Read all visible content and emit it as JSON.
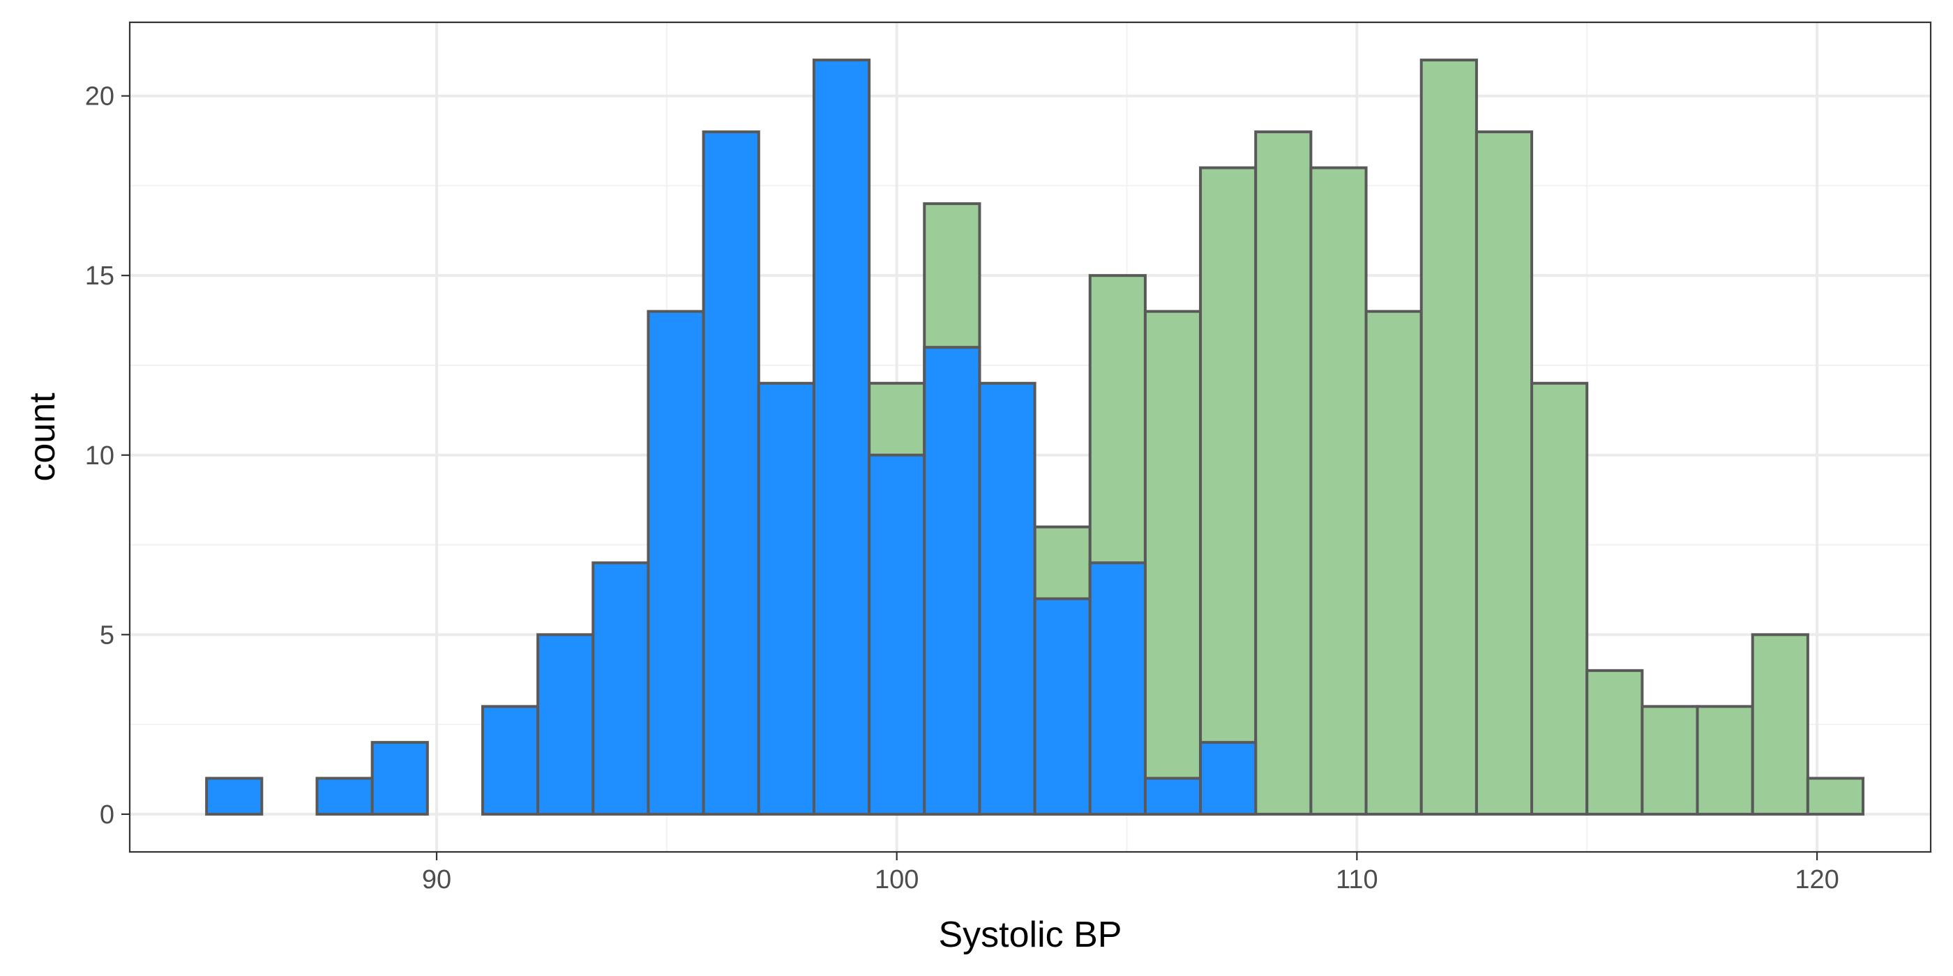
{
  "chart_data": {
    "type": "bar",
    "xlabel": "Systolic BP",
    "ylabel": "count",
    "xlim": [
      83.33,
      122.47
    ],
    "ylim": [
      -1.05,
      22.05
    ],
    "x_ticks": [
      90,
      100,
      110,
      120
    ],
    "y_ticks": [
      0,
      5,
      10,
      15,
      20
    ],
    "grid": true,
    "legend": "none",
    "bin_edges": [
      85.0,
      86.2,
      87.4,
      88.6,
      89.8,
      91.0,
      92.2,
      93.4,
      94.6,
      95.8,
      97.0,
      98.2,
      99.4,
      100.6,
      101.8,
      103.0,
      104.2,
      105.4,
      106.6,
      107.8,
      109.0,
      110.2,
      111.4,
      112.6,
      113.8,
      115.0,
      116.2,
      117.4,
      118.6,
      119.8,
      121.0
    ],
    "series": [
      {
        "color": "#9ccd99",
        "values": [
          0,
          0,
          0,
          0,
          0,
          0,
          0,
          0,
          0,
          0,
          0,
          0,
          12,
          17,
          0,
          8,
          15,
          14,
          18,
          19,
          18,
          14,
          21,
          19,
          12,
          4,
          3,
          3,
          5,
          1
        ]
      },
      {
        "color": "#1f8fff",
        "values": [
          1,
          0,
          1,
          2,
          0,
          3,
          5,
          7,
          14,
          19,
          12,
          21,
          10,
          13,
          12,
          6,
          7,
          1,
          2,
          0,
          0,
          0,
          0,
          0,
          0,
          0,
          0,
          0,
          0,
          0
        ]
      }
    ],
    "bar_outline_color": "#595959"
  }
}
